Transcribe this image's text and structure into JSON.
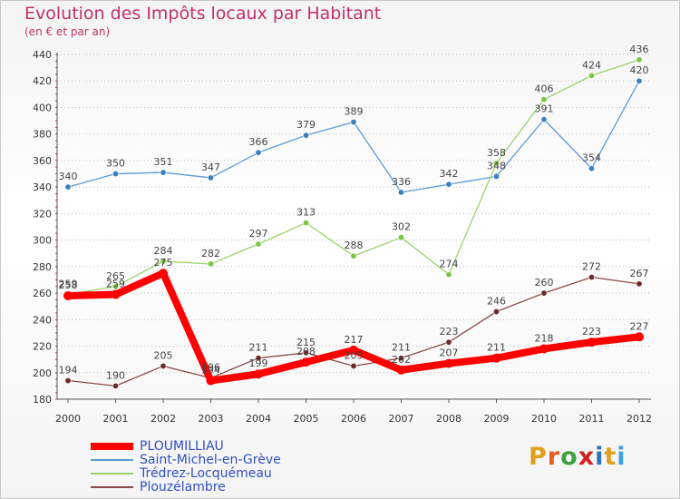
{
  "title": "Evolution des Impôts locaux par Habitant",
  "subtitle": "(en € et par an)",
  "logo": {
    "letters": [
      "P",
      "r",
      "o",
      "x",
      "i",
      "t",
      "i"
    ],
    "colors": [
      "#e0a020",
      "#e06020",
      "#40a040",
      "#d02020",
      "#3070c0",
      "#e0a020",
      "#40a0e0"
    ]
  },
  "chart_data": {
    "type": "line",
    "title": "Evolution des Impôts locaux par Habitant",
    "subtitle": "(en € et par an)",
    "xlabel": "",
    "ylabel": "",
    "ylim": [
      180,
      440
    ],
    "yticks": [
      180,
      200,
      220,
      240,
      260,
      280,
      300,
      320,
      340,
      360,
      380,
      400,
      420,
      440
    ],
    "grid": "horizontal dotted",
    "legend": "bottom-left",
    "x": [
      "2000",
      "2001",
      "2002",
      "2003",
      "2004",
      "2005",
      "2006",
      "2007",
      "2008",
      "2009",
      "2010",
      "2011",
      "2012"
    ],
    "series": [
      {
        "name": "Saint-Michel-en-Grève",
        "color": "#5b9bd5",
        "marker": "#3a7fc0",
        "values": [
          340,
          350,
          351,
          347,
          366,
          379,
          389,
          336,
          342,
          348,
          391,
          354,
          420
        ]
      },
      {
        "name": "Trédrez-Locquémeau",
        "color": "#9ad36b",
        "marker": "#7cc342",
        "values": [
          259,
          265,
          284,
          282,
          297,
          313,
          288,
          302,
          274,
          358,
          406,
          424,
          436
        ]
      },
      {
        "name": "Plouzélambre",
        "color": "#8b4a4a",
        "marker": "#6e2a2a",
        "values": [
          194,
          190,
          205,
          196,
          211,
          215,
          205,
          211,
          223,
          246,
          260,
          272,
          267
        ]
      },
      {
        "name": "PLOUMILLIAU",
        "color": "#ff0000",
        "marker": "#ff0000",
        "thick": true,
        "values": [
          258,
          259,
          275,
          194,
          199,
          208,
          217,
          202,
          207,
          211,
          218,
          223,
          227
        ]
      }
    ],
    "legend_order": [
      "PLOUMILLIAU",
      "Saint-Michel-en-Grève",
      "Trédrez-Locquémeau",
      "Plouzélambre"
    ]
  }
}
